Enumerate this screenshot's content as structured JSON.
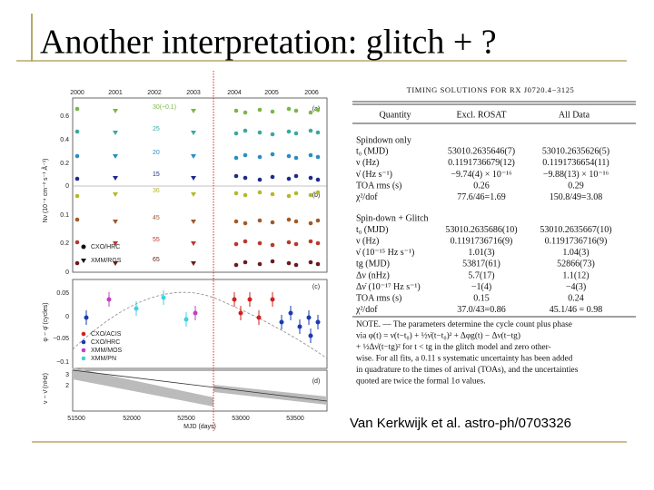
{
  "title": "Another interpretation: glitch + ?",
  "caption": "Van Kerkwijk et al. astro-ph/0703326",
  "figure": {
    "years": [
      "2000",
      "2001",
      "2002",
      "2003",
      "2004",
      "2005",
      "2006"
    ],
    "panel_labels": [
      "(a)",
      "(b)",
      "(c)",
      "(d)"
    ],
    "panel_ab_yticks": [
      "0.6",
      "0.4",
      "0.2",
      "0",
      "0.1",
      "0.2",
      "0"
    ],
    "panel_c_yticks": [
      "0.05",
      "0",
      "−0.05",
      "−0.1"
    ],
    "panel_d_yticks": [
      "3",
      "2"
    ],
    "xticks": [
      "51500",
      "52000",
      "52500",
      "53000",
      "53500"
    ],
    "x_label": "MJD (days)",
    "y_label_ab": "Nν (10⁻⁴ cm⁻² s⁻¹ Å⁻¹)",
    "y_label_c": "φ − φ̄ (cycles)",
    "y_label_d": "ν − ν̄ (nHz)",
    "energy_labels": [
      "30(÷0.1)",
      "25",
      "20",
      "15",
      "36",
      "45",
      "55",
      "65"
    ],
    "legend_ab": [
      "CXO/HRC",
      "XMM/RGS"
    ],
    "legend_c": [
      "CXO/ACIS",
      "CXO/HRC",
      "XMM/MOS",
      "XMM/PN"
    ]
  },
  "table": {
    "title": "TIMING SOLUTIONS FOR RX J0720.4−3125",
    "columns": [
      "Quantity",
      "Excl. ROSAT",
      "All Data"
    ],
    "sections": [
      {
        "name": "Spindown only",
        "rows": [
          [
            "t₀ (MJD)",
            "53010.2635646(7)",
            "53010.2635626(5)"
          ],
          [
            "ν (Hz)",
            "0.1191736679(12)",
            "0.1191736654(11)"
          ],
          [
            "ν̇ (Hz s⁻¹)",
            "−9.74(4) × 10⁻¹⁶",
            "−9.88(13) × 10⁻¹⁶"
          ],
          [
            "TOA rms (s)",
            "0.26",
            "0.29"
          ],
          [
            "χ²/dof",
            "77.6/46=1.69",
            "150.8/49=3.08"
          ]
        ]
      },
      {
        "name": "Spin-down + Glitch",
        "rows": [
          [
            "t₀ (MJD)",
            "53010.2635686(10)",
            "53010.2635667(10)"
          ],
          [
            "ν (Hz)",
            "0.1191736716(9)",
            "0.1191736716(9)"
          ],
          [
            "ν̇ (10⁻¹⁵ Hz s⁻¹)",
            "1.01(3)",
            "1.04(3)"
          ],
          [
            "tg (MJD)",
            "53817(61)",
            "52866(73)"
          ],
          [
            "Δν (nHz)",
            "5.7(17)",
            "1.1(12)"
          ],
          [
            "Δν̇ (10⁻¹⁷ Hz s⁻¹)",
            "−1(4)",
            "−4(3)"
          ],
          [
            "TOA rms (s)",
            "0.15",
            "0.24"
          ],
          [
            "χ²/dof",
            "37.0/43=0.86",
            "45.1/46 = 0.98"
          ]
        ]
      }
    ],
    "note": [
      "NOTE. — The parameters determine the cycle count plus phase",
      "via φ(t) = ν(t−t₀) + ½ν̇(t−t₀)² + Δφg(t) − Δν(t−tg)",
      "+ ½Δν̇(t−tg)² for t < tg in the glitch model and zero other-",
      "wise. For all fits, a 0.11 s systematic uncertainty has been added",
      "in quadrature to the times of arrival (TOAs), and the uncertainties",
      "quoted are twice the formal 1σ values."
    ]
  }
}
